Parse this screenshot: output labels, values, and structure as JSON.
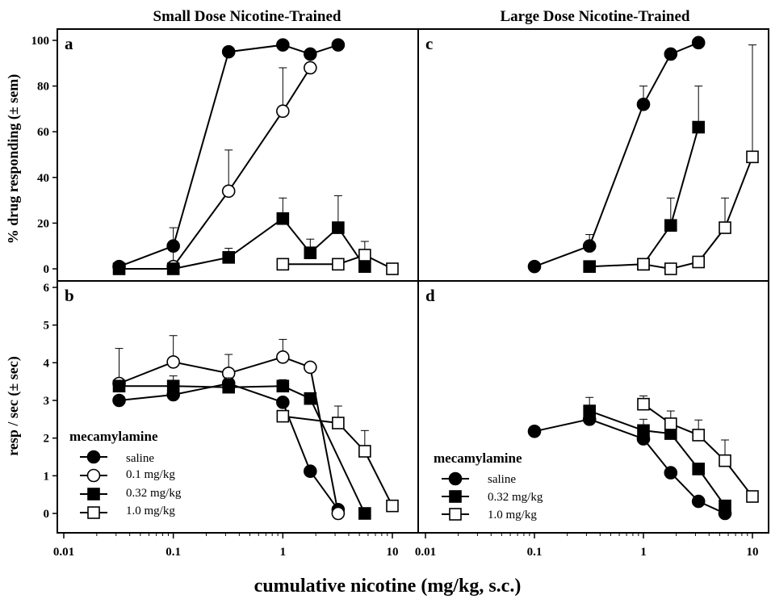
{
  "figure": {
    "column_titles": [
      "Small Dose Nicotine-Trained",
      "Large Dose Nicotine-Trained"
    ],
    "y_label_top": "% drug responding (± sem)",
    "y_label_bottom": "resp / sec (± sec)",
    "x_label": "cumulative nicotine (mg/kg, s.c.)",
    "legend_left": {
      "title": "mecamylamine",
      "items": [
        "saline",
        "0.1 mg/kg",
        "0.32 mg/kg",
        "1.0 mg/kg"
      ]
    },
    "legend_right": {
      "title": "mecamylamine",
      "items": [
        "saline",
        "0.32 mg/kg",
        "1.0 mg/kg"
      ]
    }
  },
  "chart_data": [
    {
      "panel": "a",
      "type": "line",
      "xscale": "log",
      "xlim": [
        0.01,
        10
      ],
      "ylim": [
        0,
        100
      ],
      "yticks": [
        0,
        20,
        40,
        60,
        80,
        100
      ],
      "xticks": [
        "0.01",
        "0.1",
        "1",
        "10"
      ],
      "xtick_values": [
        0.01,
        0.1,
        1,
        10
      ],
      "series": [
        {
          "name": "saline",
          "marker": "filled-circle",
          "x": [
            0.032,
            0.1,
            0.32,
            1.0,
            1.78,
            3.2
          ],
          "y": [
            1,
            10,
            95,
            98,
            94,
            98
          ],
          "err": [
            0,
            0,
            0,
            0,
            5,
            0
          ]
        },
        {
          "name": "0.1 mg/kg",
          "marker": "open-circle",
          "x": [
            0.1,
            0.32,
            1.0,
            1.78
          ],
          "y": [
            1,
            34,
            69,
            88
          ],
          "err": [
            18,
            52,
            88,
            0
          ]
        },
        {
          "name": "0.32 mg/kg",
          "marker": "filled-square",
          "x": [
            0.032,
            0.1,
            0.32,
            1.0,
            1.78,
            3.2,
            5.6
          ],
          "y": [
            0,
            0,
            5,
            22,
            7,
            18,
            1
          ],
          "err": [
            0,
            0,
            9,
            31,
            13,
            32,
            0
          ]
        },
        {
          "name": "1.0 mg/kg",
          "marker": "open-square",
          "x": [
            1.0,
            3.2,
            5.6,
            10.0
          ],
          "y": [
            2,
            2,
            6,
            0
          ],
          "err": [
            0,
            0,
            12,
            0
          ]
        }
      ]
    },
    {
      "panel": "c",
      "type": "line",
      "xscale": "log",
      "xlim": [
        0.01,
        10
      ],
      "ylim": [
        0,
        100
      ],
      "xticks": [
        "0.01",
        "0.1",
        "1",
        "10"
      ],
      "xtick_values": [
        0.01,
        0.1,
        1,
        10
      ],
      "series": [
        {
          "name": "saline",
          "marker": "filled-circle",
          "x": [
            0.1,
            0.32,
            1.0,
            1.78,
            3.2
          ],
          "y": [
            1,
            10,
            72,
            94,
            99
          ],
          "err": [
            0,
            15,
            80,
            0,
            0
          ]
        },
        {
          "name": "0.32 mg/kg",
          "marker": "filled-square",
          "x": [
            0.32,
            1.0,
            1.78,
            3.2
          ],
          "y": [
            1,
            2,
            19,
            62
          ],
          "err": [
            0,
            0,
            31,
            80
          ]
        },
        {
          "name": "1.0 mg/kg",
          "marker": "open-square",
          "x": [
            1.0,
            1.78,
            3.2,
            5.6,
            10.0
          ],
          "y": [
            2,
            0,
            3,
            18,
            49
          ],
          "err": [
            0,
            0,
            0,
            31,
            98
          ]
        }
      ]
    },
    {
      "panel": "b",
      "type": "line",
      "xscale": "log",
      "xlim": [
        0.01,
        10
      ],
      "ylim": [
        0,
        6
      ],
      "yticks": [
        0,
        1,
        2,
        3,
        4,
        5,
        6
      ],
      "xticks": [
        "0.01",
        "0.1",
        "1",
        "10"
      ],
      "xtick_values": [
        0.01,
        0.1,
        1,
        10
      ],
      "series": [
        {
          "name": "saline",
          "marker": "filled-circle",
          "x": [
            0.032,
            0.1,
            0.32,
            1.0,
            1.78,
            3.2
          ],
          "y": [
            3.0,
            3.15,
            3.45,
            2.95,
            1.12,
            0.1
          ],
          "err": [
            2.55,
            2.95,
            3.0,
            2.55,
            0.58,
            0
          ]
        },
        {
          "name": "0.1 mg/kg",
          "marker": "open-circle",
          "x": [
            0.032,
            0.1,
            0.32,
            1.0,
            1.78,
            3.2
          ],
          "y": [
            3.45,
            4.02,
            3.72,
            4.15,
            3.88,
            0.0
          ],
          "err": [
            4.38,
            4.72,
            4.22,
            4.62,
            0,
            0
          ]
        },
        {
          "name": "0.32 mg/kg",
          "marker": "filled-square",
          "x": [
            0.032,
            0.1,
            0.32,
            1.0,
            1.78,
            5.6
          ],
          "y": [
            3.38,
            3.38,
            3.35,
            3.38,
            3.05,
            0.0
          ],
          "err": [
            0,
            3.65,
            3.6,
            3.55,
            2.42,
            0
          ]
        },
        {
          "name": "1.0 mg/kg",
          "marker": "open-square",
          "x": [
            1.0,
            3.2,
            5.6,
            10.0
          ],
          "y": [
            2.58,
            2.4,
            1.65,
            0.2
          ],
          "err": [
            2.22,
            2.85,
            2.2,
            0
          ]
        }
      ]
    },
    {
      "panel": "d",
      "type": "line",
      "xscale": "log",
      "xlim": [
        0.01,
        10
      ],
      "ylim": [
        0,
        6
      ],
      "xticks": [
        "0.01",
        "0.1",
        "1",
        "10"
      ],
      "xtick_values": [
        0.01,
        0.1,
        1,
        10
      ],
      "series": [
        {
          "name": "saline",
          "marker": "filled-circle",
          "x": [
            0.1,
            0.32,
            1.0,
            1.78,
            3.2,
            5.6
          ],
          "y": [
            2.18,
            2.5,
            1.98,
            1.08,
            0.32,
            0.0
          ],
          "err": [
            1.8,
            2.15,
            1.62,
            0.75,
            0,
            0
          ]
        },
        {
          "name": "0.32 mg/kg",
          "marker": "filled-square",
          "x": [
            0.32,
            1.0,
            1.78,
            3.2,
            5.6
          ],
          "y": [
            2.72,
            2.2,
            2.12,
            1.18,
            0.2
          ],
          "err": [
            3.08,
            2.5,
            2.4,
            0.82,
            0
          ]
        },
        {
          "name": "1.0 mg/kg",
          "marker": "open-square",
          "x": [
            1.0,
            1.78,
            3.2,
            5.6,
            10.0
          ],
          "y": [
            2.9,
            2.38,
            2.08,
            1.4,
            0.45
          ],
          "err": [
            3.12,
            2.72,
            2.48,
            1.95,
            0.15
          ]
        }
      ]
    }
  ]
}
